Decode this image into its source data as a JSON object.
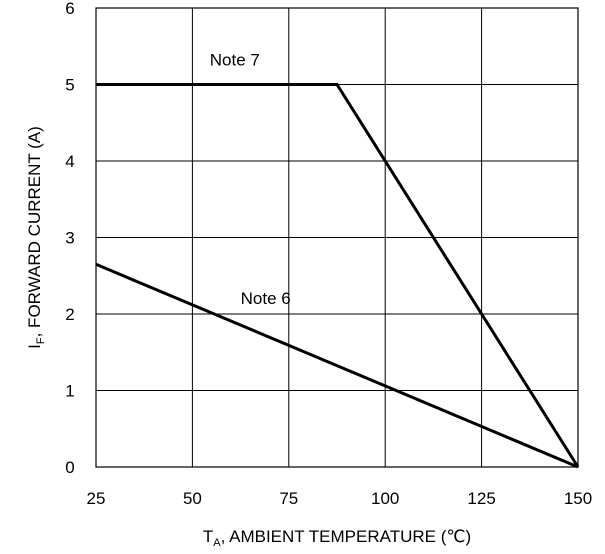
{
  "chart_data": {
    "type": "line",
    "title": "",
    "xlabel": {
      "main": "T",
      "sub": "A",
      "rest": ", AMBIENT TEMPERATURE (℃)"
    },
    "ylabel": {
      "main": "I",
      "sub": "F",
      "rest": ", FORWARD CURRENT (A)"
    },
    "xlim": [
      25,
      150
    ],
    "ylim": [
      0,
      6
    ],
    "xticks": [
      25,
      50,
      75,
      100,
      125,
      150
    ],
    "yticks": [
      0,
      1,
      2,
      3,
      4,
      5,
      6
    ],
    "grid": true,
    "line_color": "#000000",
    "series": [
      {
        "name": "Note 7",
        "x": [
          25,
          87.5,
          150
        ],
        "y": [
          5,
          5,
          0
        ]
      },
      {
        "name": "Note 6",
        "x": [
          25,
          150
        ],
        "y": [
          2.65,
          0
        ]
      }
    ],
    "annotations": [
      {
        "text": "Note 7",
        "x": 61,
        "y": 5.25
      },
      {
        "text": "Note 6",
        "x": 69,
        "y": 2.13
      }
    ]
  }
}
